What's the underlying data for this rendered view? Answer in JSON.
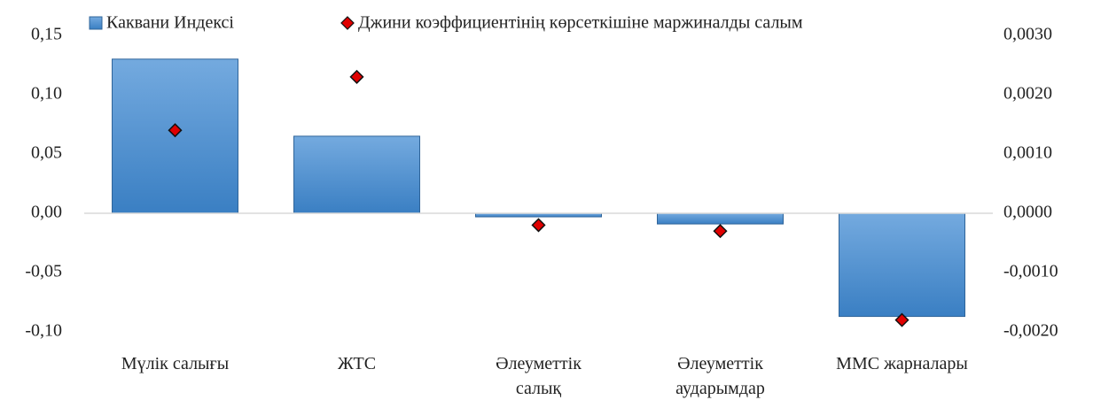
{
  "chart_data": {
    "type": "bar_scatter",
    "categories": [
      "Мүлік салығы",
      "ЖТС",
      "Әлеуметтік\nсалық",
      "Әлеуметтік\nаударымдар",
      "ММС жарналары"
    ],
    "series": [
      {
        "name": "Каквани Индексі",
        "color": "#5b9bd5",
        "values": [
          0.13,
          0.065,
          -0.003,
          -0.009,
          -0.087
        ]
      },
      {
        "name": "Джини коэффициентінің көрсеткішіне маржиналды салым",
        "color": "#e00000",
        "axis": "y2",
        "values": [
          0.0014,
          0.0023,
          -0.0002,
          -0.0003,
          -0.0018
        ]
      }
    ],
    "ylim": [
      -0.1,
      0.15
    ],
    "yticks": [
      {
        "value": 0.15,
        "label": "0,15"
      },
      {
        "value": 0.1,
        "label": "0,10"
      },
      {
        "value": 0.05,
        "label": "0,05"
      },
      {
        "value": 0.0,
        "label": "0,00"
      },
      {
        "value": -0.05,
        "label": "-0,05"
      },
      {
        "value": -0.1,
        "label": "-0,10"
      }
    ],
    "y2lim": [
      -0.002,
      0.003
    ],
    "y2ticks": [
      {
        "value": 0.003,
        "label": "0,0030"
      },
      {
        "value": 0.002,
        "label": "0,0020"
      },
      {
        "value": 0.001,
        "label": "0,0010"
      },
      {
        "value": 0.0,
        "label": "0,0000"
      },
      {
        "value": -0.001,
        "label": "-0,0010"
      },
      {
        "value": -0.002,
        "label": "-0,0020"
      }
    ],
    "legend": "top"
  }
}
